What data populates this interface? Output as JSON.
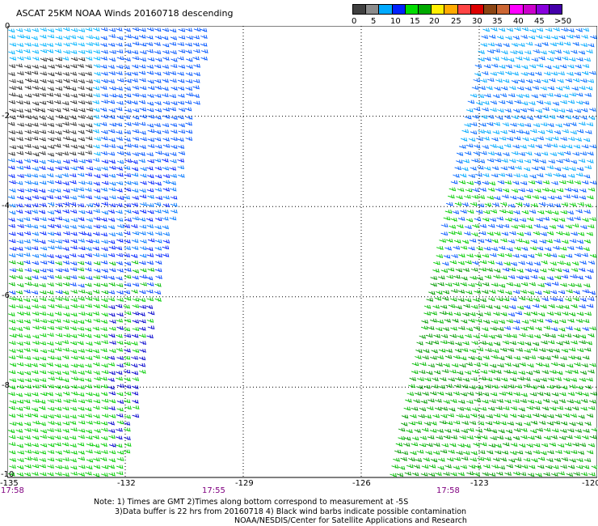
{
  "title": "ASCAT 25KM NOAA Winds 20160718 descending",
  "legend": {
    "colors": [
      "#404040",
      "#8c8c8c",
      "#00aaff",
      "#0022ff",
      "#00dd00",
      "#00aa00",
      "#ffee00",
      "#ffaa00",
      "#ff4444",
      "#dd0000",
      "#8b4513",
      "#cc6633",
      "#ff00ff",
      "#cc00cc",
      "#8800dd",
      "#4400aa"
    ],
    "ticks": [
      "0",
      "5",
      "10",
      "15",
      "20",
      "25",
      "30",
      "35",
      "40",
      "45",
      ">50 knots"
    ]
  },
  "map": {
    "lon_range": [
      -135,
      -120
    ],
    "lat_range": [
      -10,
      0
    ],
    "lat_labels": [
      "0",
      "-2",
      "-4",
      "-6",
      "-8",
      "-10"
    ],
    "lon_labels": [
      "-135",
      "-132",
      "-129",
      "-126",
      "-123",
      "-120"
    ],
    "time_labels": [
      "17:58",
      "17:55",
      "17:58"
    ]
  },
  "notes": [
    "Note: 1) Times are GMT 2)Times along bottom correspond to measurement at -5S",
    "3)Data buffer is 22 hrs from 20160718 4) Black wind barbs indicate possible contamination",
    "NOAA/NESDIS/Center for Satellite Applications and Research"
  ]
}
